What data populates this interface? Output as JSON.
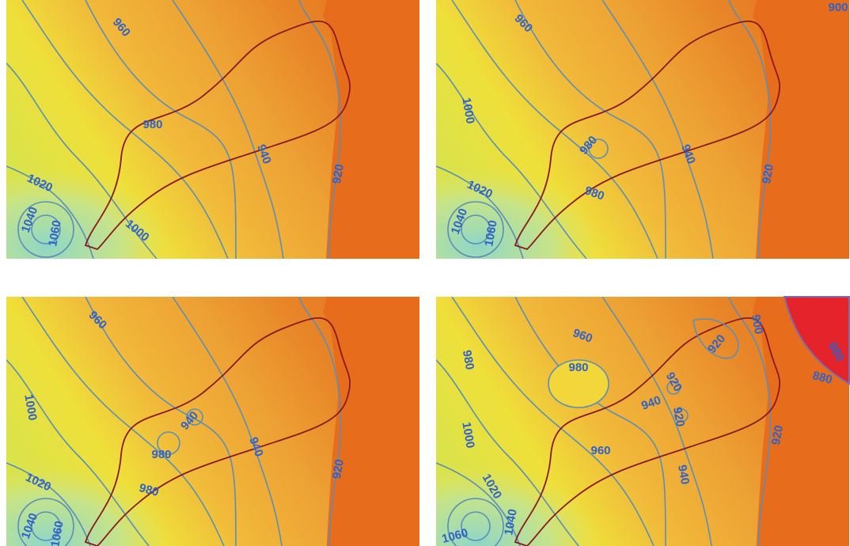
{
  "panels": [
    {
      "contour_labels": [
        "960",
        "980",
        "940",
        "920",
        "1020",
        "1040",
        "1060",
        "1000"
      ]
    },
    {
      "contour_labels": [
        "960",
        "1000",
        "980",
        "980",
        "940",
        "920",
        "1020",
        "1040",
        "1060",
        "900"
      ]
    },
    {
      "contour_labels": [
        "960",
        "1000",
        "940",
        "980",
        "980",
        "940",
        "920",
        "1020",
        "1040",
        "1060"
      ]
    },
    {
      "contour_labels": [
        "960",
        "980",
        "980",
        "900",
        "920",
        "920",
        "940",
        "920",
        "880",
        "880",
        "1000",
        "960",
        "940",
        "920",
        "1020",
        "1040",
        "1060"
      ]
    }
  ]
}
